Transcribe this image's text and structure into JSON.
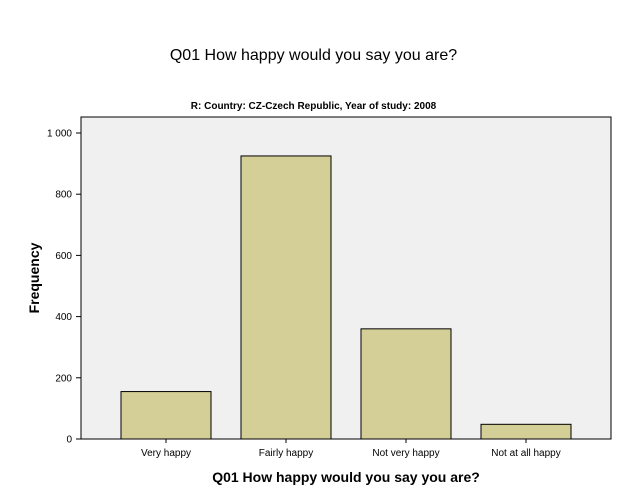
{
  "chart_data": {
    "type": "bar",
    "title": "Q01 How happy would you say you are?",
    "subtitle": "R: Country: CZ-Czech Republic, Year of study: 2008",
    "xlabel": "Q01 How happy would you say you are?",
    "ylabel": "Frequency",
    "categories": [
      "Very happy",
      "Fairly happy",
      "Not very happy",
      "Not at all happy"
    ],
    "values": [
      155,
      925,
      360,
      48
    ],
    "ylim": [
      0,
      1000
    ],
    "yticks": [
      0,
      200,
      400,
      600,
      800,
      1000
    ],
    "ytick_labels": [
      "0",
      "200",
      "400",
      "600",
      "800",
      "1 000"
    ],
    "grid": false,
    "colors": {
      "bar_fill": "#d3cf97",
      "bar_stroke": "#000000",
      "plot_background": "#f0f0f0"
    }
  }
}
